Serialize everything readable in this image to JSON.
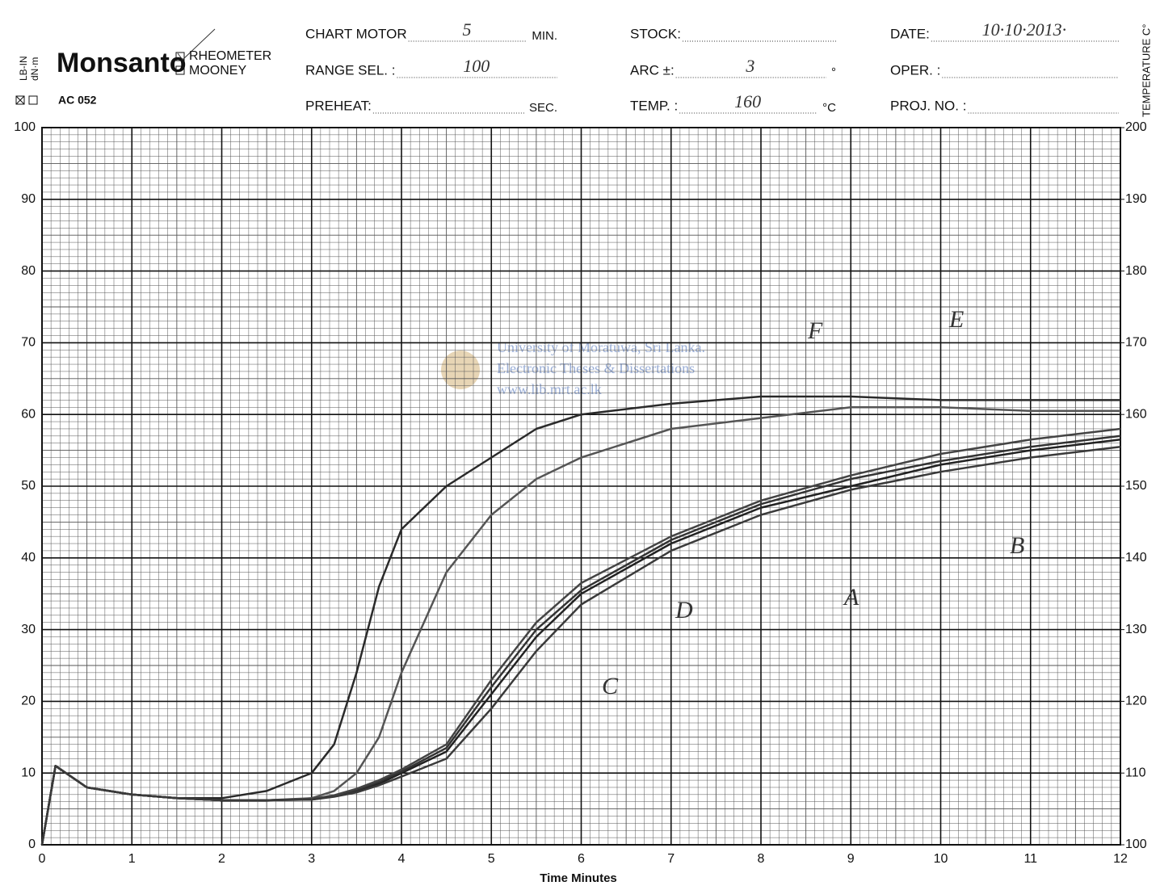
{
  "form": {
    "brand": "Monsanto",
    "model": "AC 052",
    "units": [
      "LB-IN",
      "dN·m"
    ],
    "modes": [
      "RHEOMETER",
      "MOONEY"
    ],
    "fields": [
      {
        "label": "CHART MOTOR",
        "value": "5",
        "suffix": "MIN."
      },
      {
        "label": "RANGE SEL. :",
        "value": "100"
      },
      {
        "label": "PREHEAT:",
        "suffix": "SEC."
      },
      {
        "label": "STOCK:"
      },
      {
        "label": "ARC ±:",
        "value": "3",
        "suffix": "°"
      },
      {
        "label": "TEMP. :",
        "value": "160",
        "suffix": "°C"
      },
      {
        "label": "DATE:",
        "value": "10·10·2013·"
      },
      {
        "label": "OPER. :"
      },
      {
        "label": "PROJ. NO. :"
      }
    ]
  },
  "watermark": [
    "University of Moratuwa, Sri Lanka.",
    "Electronic Theses & Dissertations",
    "www.lib.mrt.ac.lk"
  ],
  "chart_data": {
    "type": "line",
    "x_label": "Time Minutes",
    "y2_label": "TEMPERATURE C°",
    "x": [
      0,
      0.15,
      0.5,
      1,
      1.5,
      2,
      2.5,
      3,
      3.25,
      3.5,
      3.75,
      4,
      4.5,
      5,
      5.5,
      6,
      7,
      8,
      9,
      10,
      11,
      12
    ],
    "series": [
      {
        "name": "E",
        "color": "#2a2a2a",
        "values": [
          0,
          11,
          8,
          7,
          6.5,
          6.5,
          7.5,
          10,
          14,
          24,
          36,
          44,
          50,
          54,
          58,
          60,
          61.5,
          62.5,
          62.5,
          62,
          62,
          62
        ]
      },
      {
        "name": "F",
        "color": "#555555",
        "values": [
          0,
          11,
          8,
          7,
          6.5,
          6.2,
          6.2,
          6.5,
          7.5,
          10,
          15,
          24,
          38,
          46,
          51,
          54,
          58,
          59.5,
          61,
          61,
          60.5,
          60.5
        ]
      },
      {
        "name": "A",
        "color": "#222222",
        "values": [
          0,
          11,
          8,
          7,
          6.5,
          6.2,
          6.2,
          6.3,
          6.8,
          7.5,
          8.5,
          10,
          13,
          21,
          29,
          35,
          42,
          47,
          50,
          53,
          55,
          56.5
        ]
      },
      {
        "name": "B",
        "color": "#333333",
        "values": [
          0,
          11,
          8,
          7,
          6.5,
          6.2,
          6.2,
          6.4,
          6.8,
          7.6,
          8.8,
          10.2,
          13.5,
          22,
          30,
          35.5,
          42.5,
          47.5,
          51,
          53.5,
          55.5,
          57
        ]
      },
      {
        "name": "C",
        "color": "#444444",
        "values": [
          0,
          11,
          8,
          7,
          6.5,
          6.2,
          6.2,
          6.4,
          6.9,
          7.8,
          9,
          10.5,
          14,
          23,
          31,
          36.5,
          43,
          48,
          51.5,
          54.5,
          56.5,
          58
        ]
      },
      {
        "name": "D",
        "color": "#3a3a3a",
        "values": [
          0,
          11,
          8,
          7,
          6.5,
          6.2,
          6.2,
          6.3,
          6.7,
          7.3,
          8.3,
          9.5,
          12,
          19,
          27,
          33.5,
          41,
          46,
          49.5,
          52,
          54,
          55.5
        ]
      }
    ],
    "xlim": [
      0,
      12
    ],
    "xticks": [
      0,
      1,
      2,
      3,
      4,
      5,
      6,
      7,
      8,
      9,
      10,
      11,
      12
    ],
    "ylim": [
      0,
      100
    ],
    "yticks": [
      0,
      10,
      20,
      30,
      40,
      50,
      60,
      70,
      80,
      90,
      100
    ],
    "y2lim": [
      100,
      200
    ],
    "y2ticks": [
      100,
      110,
      120,
      130,
      140,
      150,
      160,
      170,
      180,
      190,
      200
    ],
    "grid": true
  }
}
